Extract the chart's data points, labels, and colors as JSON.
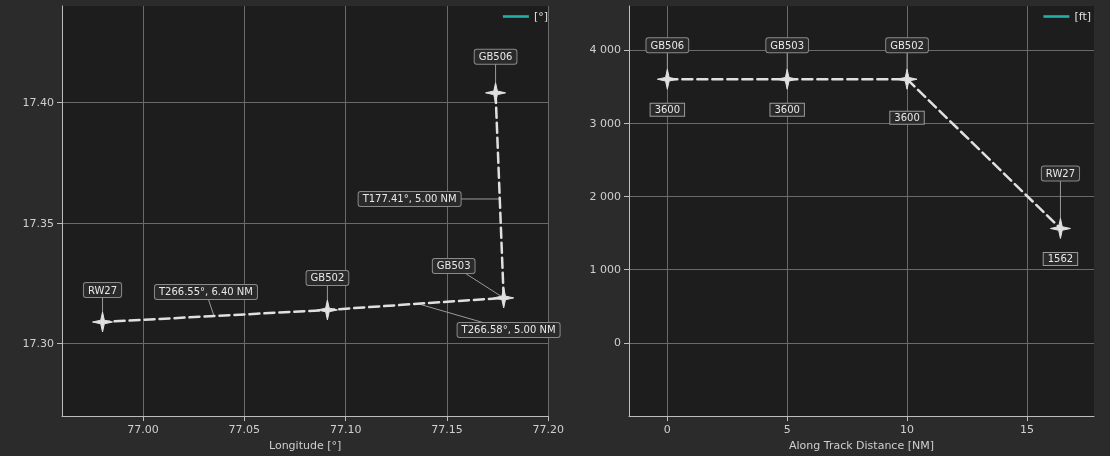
{
  "chart_data": [
    {
      "type": "line",
      "xlabel": "Longitude [°]",
      "xlim": [
        76.96,
        77.2
      ],
      "xticks": [
        {
          "value": 77,
          "label": "77.00"
        },
        {
          "value": 77.05,
          "label": "77.05"
        },
        {
          "value": 77.1,
          "label": "77.10"
        },
        {
          "value": 77.15,
          "label": "77.15"
        },
        {
          "value": 77.2,
          "label": "77.20"
        }
      ],
      "ylim": [
        17.27,
        17.44
      ],
      "yticks": [
        {
          "value": 17.3,
          "label": "17.30"
        },
        {
          "value": 17.35,
          "label": "17.35"
        },
        {
          "value": 17.4,
          "label": "17.40"
        }
      ],
      "grid": true,
      "legend": "top right",
      "marker": "star",
      "line_style": "dashed",
      "series": [
        {
          "color": "#e0e0e0",
          "x": [
            77.174,
            77.178,
            77.091,
            76.98
          ],
          "values": [
            17.404,
            17.319,
            17.314,
            17.309
          ]
        },
        {
          "name": "[°]",
          "color": "#20b2aa"
        }
      ],
      "annotations": [
        {
          "text": "GB506",
          "x": 77.174,
          "y": 17.404
        },
        {
          "text": "GB503",
          "x": 77.178,
          "y": 17.319
        },
        {
          "text": "GB502",
          "x": 77.091,
          "y": 17.314
        },
        {
          "text": "RW27",
          "x": 76.98,
          "y": 17.309
        },
        {
          "text": "T266.55°, 6.40 NM",
          "x": 77.035,
          "y": 17.3115
        },
        {
          "text": "T266.58°, 5.00 NM",
          "x": 77.136,
          "y": 17.3165
        },
        {
          "text": "T177.41°, 5.00 NM",
          "x": 77.176,
          "y": 17.36
        }
      ]
    },
    {
      "type": "line",
      "xlabel": "Along Track Distance [NM]",
      "xlim": [
        -1.6,
        17.8
      ],
      "xticks": [
        0,
        5,
        10,
        15
      ],
      "ylim": [
        -1000,
        4600
      ],
      "yticks": [
        {
          "value": 0,
          "label": "0"
        },
        {
          "value": 1000,
          "label": "1 000"
        },
        {
          "value": 2000,
          "label": "2 000"
        },
        {
          "value": 3000,
          "label": "3 000"
        },
        {
          "value": 4000,
          "label": "4 000"
        }
      ],
      "grid": true,
      "legend": "top right",
      "marker": "star",
      "line_style": "dashed",
      "data_labels": true,
      "series": [
        {
          "color": "#e0e0e0",
          "x": [
            0,
            5,
            10,
            16.4
          ],
          "values": [
            3600,
            3600,
            3600,
            1562
          ]
        },
        {
          "name": "[ft]",
          "color": "#20b2aa"
        }
      ],
      "annotations": [
        {
          "text": "GB506",
          "x": 0,
          "y": 3600
        },
        {
          "text": "GB503",
          "x": 5,
          "y": 3600
        },
        {
          "text": "GB502",
          "x": 10,
          "y": 3600
        },
        {
          "text": "RW27",
          "x": 16.4,
          "y": 1562
        }
      ]
    }
  ]
}
